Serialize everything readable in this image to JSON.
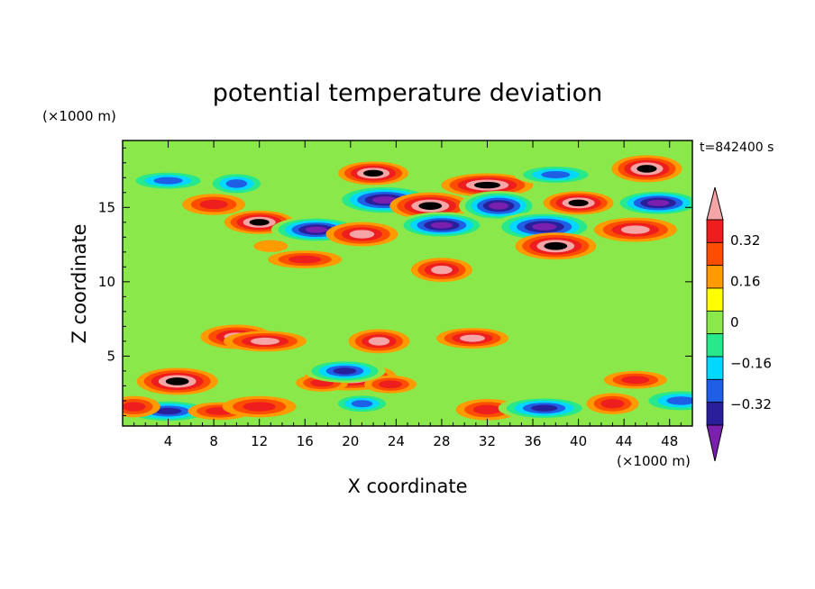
{
  "chart_data": {
    "type": "heatmap",
    "title": "potential temperature deviation",
    "xlabel": "X coordinate",
    "ylabel": "Z coordinate",
    "x_unit": "(×1000 m)",
    "y_unit": "(×1000 m)",
    "time_label": "t=842400 s",
    "xlim": [
      0,
      50
    ],
    "ylim": [
      0.3,
      19.5
    ],
    "x_ticks": [
      4,
      8,
      12,
      16,
      20,
      24,
      28,
      32,
      36,
      40,
      44,
      48
    ],
    "y_ticks": [
      5,
      10,
      15
    ],
    "colorbar": {
      "levels": [
        -0.4,
        -0.32,
        -0.24,
        -0.16,
        -0.08,
        0,
        0.08,
        0.16,
        0.24,
        0.32,
        0.4
      ],
      "tick_labels": [
        "0.32",
        "0.16",
        "0",
        "−0.16",
        "−0.32"
      ],
      "tick_values": [
        0.32,
        0.16,
        0,
        -0.16,
        -0.32
      ],
      "colors": [
        "#7a1fae",
        "#2a1f9a",
        "#1e5fe6",
        "#00d8ff",
        "#28e88c",
        "#8ae84a",
        "#ffff00",
        "#ff9b00",
        "#ff4d00",
        "#ee1e1e",
        "#f5a5a5"
      ],
      "extend": "both"
    },
    "features": [
      {
        "x": 12,
        "z": 14.0,
        "value": 0.45
      },
      {
        "x": 8,
        "z": 15.2,
        "value": 0.3
      },
      {
        "x": 4,
        "z": 16.8,
        "value": -0.3
      },
      {
        "x": 10,
        "z": 16.6,
        "value": -0.28
      },
      {
        "x": 17,
        "z": 13.5,
        "value": -0.42
      },
      {
        "x": 23,
        "z": 15.5,
        "value": -0.42
      },
      {
        "x": 22,
        "z": 17.3,
        "value": 0.45
      },
      {
        "x": 27,
        "z": 15.1,
        "value": 0.45
      },
      {
        "x": 32,
        "z": 16.5,
        "value": 0.45
      },
      {
        "x": 33,
        "z": 15.1,
        "value": -0.42
      },
      {
        "x": 28,
        "z": 13.8,
        "value": -0.42
      },
      {
        "x": 37,
        "z": 13.7,
        "value": -0.42
      },
      {
        "x": 40,
        "z": 15.3,
        "value": 0.45
      },
      {
        "x": 38,
        "z": 12.4,
        "value": 0.45
      },
      {
        "x": 38,
        "z": 17.2,
        "value": -0.3
      },
      {
        "x": 46,
        "z": 17.6,
        "value": 0.45
      },
      {
        "x": 47,
        "z": 15.3,
        "value": -0.42
      },
      {
        "x": 45,
        "z": 13.5,
        "value": 0.35
      },
      {
        "x": 13,
        "z": 12.4,
        "value": 0.1
      },
      {
        "x": 21,
        "z": 13.2,
        "value": 0.35
      },
      {
        "x": 16,
        "z": 11.5,
        "value": 0.3
      },
      {
        "x": 28,
        "z": 10.8,
        "value": 0.35
      },
      {
        "x": 30.7,
        "z": 6.2,
        "value": 0.35
      },
      {
        "x": 20,
        "z": 3.6,
        "value": 0.45
      },
      {
        "x": 17.5,
        "z": 3.2,
        "value": 0.3
      },
      {
        "x": 4.8,
        "z": 3.3,
        "value": 0.45
      },
      {
        "x": 4,
        "z": 1.3,
        "value": -0.4
      },
      {
        "x": 1,
        "z": 1.6,
        "value": 0.25
      },
      {
        "x": 8.5,
        "z": 1.3,
        "value": 0.25
      },
      {
        "x": 12,
        "z": 1.6,
        "value": 0.28
      },
      {
        "x": 21,
        "z": 1.8,
        "value": -0.32
      },
      {
        "x": 32,
        "z": 1.4,
        "value": 0.3
      },
      {
        "x": 37,
        "z": 1.5,
        "value": -0.35
      },
      {
        "x": 43,
        "z": 1.8,
        "value": 0.25
      },
      {
        "x": 45,
        "z": 3.4,
        "value": 0.3
      },
      {
        "x": 49,
        "z": 2.0,
        "value": -0.3
      },
      {
        "x": 23.5,
        "z": 3.1,
        "value": 0.3
      },
      {
        "x": 10,
        "z": 6.3,
        "value": 0.35
      },
      {
        "x": 12.5,
        "z": 6.0,
        "value": 0.35
      },
      {
        "x": 22.5,
        "z": 6.0,
        "value": 0.35
      },
      {
        "x": 19.5,
        "z": 4.0,
        "value": -0.35
      }
    ]
  }
}
